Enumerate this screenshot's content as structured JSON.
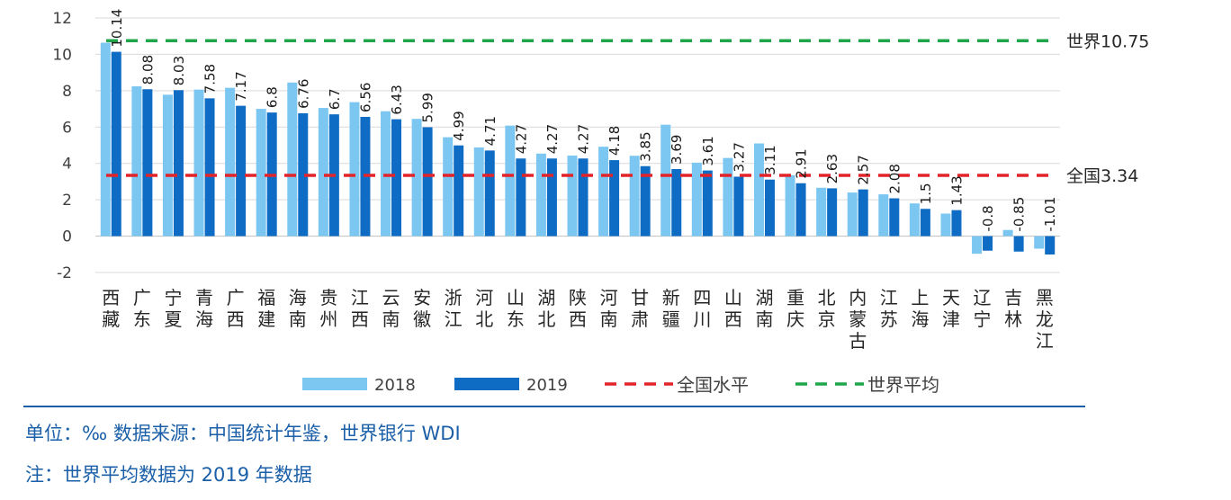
{
  "colors": {
    "s2018": "#7cc7f2",
    "s2019": "#0f6cc4",
    "national": "#e2242a",
    "world": "#1fa64a",
    "grid": "#d9d9d9",
    "note": "#1a5fa8"
  },
  "chart_data": {
    "type": "bar",
    "title": "",
    "xlabel": "",
    "ylabel": "",
    "ylim": [
      -2,
      12
    ],
    "yticks": [
      "12",
      "10",
      "8",
      "6",
      "4",
      "2",
      "0",
      "-2"
    ],
    "grid": true,
    "legend_position": "bottom",
    "categories": [
      "西藏",
      "广东",
      "宁夏",
      "青海",
      "广西",
      "福建",
      "海南",
      "贵州",
      "江西",
      "云南",
      "安徽",
      "浙江",
      "河北",
      "山东",
      "湖北",
      "陕西",
      "河南",
      "甘肃",
      "新疆",
      "四川",
      "山西",
      "湖南",
      "重庆",
      "北京",
      "内蒙古",
      "江苏",
      "上海",
      "天津",
      "辽宁",
      "吉林",
      "黑龙江"
    ],
    "series": [
      {
        "name": "2018",
        "values": [
          10.64,
          8.24,
          7.78,
          8.06,
          8.16,
          7.0,
          8.45,
          7.05,
          7.37,
          6.87,
          6.45,
          5.44,
          4.88,
          6.08,
          4.54,
          4.43,
          4.92,
          4.42,
          6.13,
          4.04,
          4.3,
          5.1,
          3.35,
          2.66,
          2.4,
          2.3,
          1.8,
          1.24,
          -0.97,
          0.34,
          -0.69
        ]
      },
      {
        "name": "2019",
        "values": [
          10.14,
          8.08,
          8.03,
          7.58,
          7.17,
          6.8,
          6.76,
          6.7,
          6.56,
          6.43,
          5.99,
          4.99,
          4.71,
          4.27,
          4.27,
          4.27,
          4.18,
          3.85,
          3.69,
          3.61,
          3.27,
          3.11,
          2.91,
          2.63,
          2.57,
          2.08,
          1.5,
          1.43,
          -0.8,
          -0.85,
          -1.01
        ]
      }
    ],
    "data_labels": [
      "10.14",
      "8.08",
      "8.03",
      "7.58",
      "7.17",
      "6.8",
      "6.76",
      "6.7",
      "6.56",
      "6.43",
      "5.99",
      "4.99",
      "4.71",
      "4.27",
      "4.27",
      "4.27",
      "4.18",
      "3.85",
      "3.69",
      "3.61",
      "3.27",
      "3.11",
      "2.91",
      "2.63",
      "2.57",
      "2.08",
      "1.5",
      "1.43",
      "-0.8",
      "-0.85",
      "-1.01"
    ],
    "reference_lines": [
      {
        "name": "全国水平",
        "value": 3.34,
        "label": "全国3.34",
        "style": "dashed",
        "color": "#e2242a"
      },
      {
        "name": "世界平均",
        "value": 10.75,
        "label": "世界10.75",
        "style": "dashed",
        "color": "#1fa64a"
      }
    ]
  },
  "notes": {
    "unit": "单位：‰   数据来源：中国统计年鉴，世界银行 WDI",
    "footnote": "注：世界平均数据为 2019 年数据"
  }
}
